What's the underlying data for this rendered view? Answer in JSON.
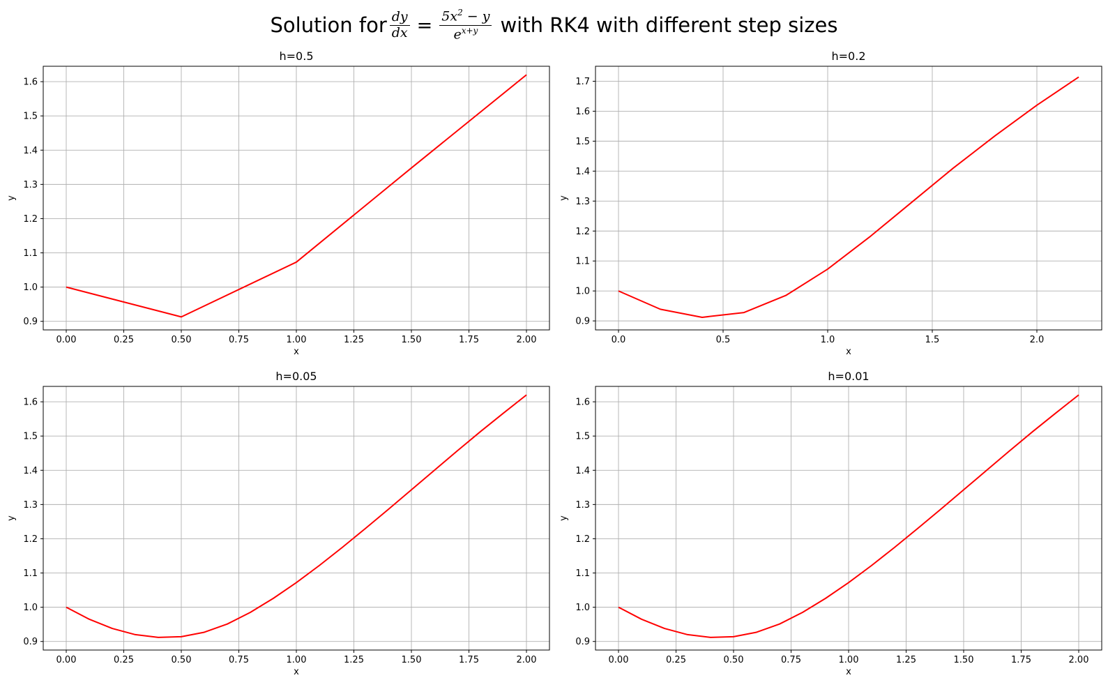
{
  "figure": {
    "title_prefix": "Solution for",
    "title_suffix": "with RK4 with different step sizes",
    "equation": {
      "lhs_num": "dy",
      "lhs_den": "dx",
      "eq": "=",
      "rhs_num_a": "5x",
      "rhs_num_exp": "2",
      "rhs_num_b": " − y",
      "rhs_den_base": "e",
      "rhs_den_exp": "x+y"
    }
  },
  "colors": {
    "line": "#ff0000",
    "grid": "#b0b0b0",
    "axis": "#000000",
    "background": "#ffffff"
  },
  "chart_data": [
    {
      "type": "line",
      "title": "h=0.5",
      "xlabel": "x",
      "ylabel": "y",
      "xlim": [
        -0.1,
        2.1
      ],
      "ylim": [
        0.875,
        1.645
      ],
      "xticks": [
        0.0,
        0.25,
        0.5,
        0.75,
        1.0,
        1.25,
        1.5,
        1.75,
        2.0
      ],
      "xtick_labels": [
        "0.00",
        "0.25",
        "0.50",
        "0.75",
        "1.00",
        "1.25",
        "1.50",
        "1.75",
        "2.00"
      ],
      "yticks": [
        0.9,
        1.0,
        1.1,
        1.2,
        1.3,
        1.4,
        1.5,
        1.6
      ],
      "ytick_labels": [
        "0.9",
        "1.0",
        "1.1",
        "1.2",
        "1.3",
        "1.4",
        "1.5",
        "1.6"
      ],
      "grid": true,
      "series": [
        {
          "color": "#ff0000",
          "x": [
            0.0,
            0.5,
            1.0,
            1.5,
            2.0
          ],
          "y": [
            1.0,
            0.913,
            1.073,
            1.348,
            1.62
          ]
        }
      ]
    },
    {
      "type": "line",
      "title": "h=0.2",
      "xlabel": "x",
      "ylabel": "y",
      "xlim": [
        -0.11,
        2.31
      ],
      "ylim": [
        0.87,
        1.75
      ],
      "xticks": [
        0.0,
        0.5,
        1.0,
        1.5,
        2.0
      ],
      "xtick_labels": [
        "0.0",
        "0.5",
        "1.0",
        "1.5",
        "2.0"
      ],
      "yticks": [
        0.9,
        1.0,
        1.1,
        1.2,
        1.3,
        1.4,
        1.5,
        1.6,
        1.7
      ],
      "ytick_labels": [
        "0.9",
        "1.0",
        "1.1",
        "1.2",
        "1.3",
        "1.4",
        "1.5",
        "1.6",
        "1.7"
      ],
      "grid": true,
      "series": [
        {
          "color": "#ff0000",
          "x": [
            0.0,
            0.2,
            0.4,
            0.6,
            0.8,
            1.0,
            1.2,
            1.4,
            1.6,
            1.8,
            2.0,
            2.2
          ],
          "y": [
            1.0,
            0.939,
            0.912,
            0.928,
            0.985,
            1.073,
            1.18,
            1.295,
            1.41,
            1.518,
            1.62,
            1.714
          ]
        }
      ]
    },
    {
      "type": "line",
      "title": "h=0.05",
      "xlabel": "x",
      "ylabel": "y",
      "xlim": [
        -0.1,
        2.1
      ],
      "ylim": [
        0.875,
        1.645
      ],
      "xticks": [
        0.0,
        0.25,
        0.5,
        0.75,
        1.0,
        1.25,
        1.5,
        1.75,
        2.0
      ],
      "xtick_labels": [
        "0.00",
        "0.25",
        "0.50",
        "0.75",
        "1.00",
        "1.25",
        "1.50",
        "1.75",
        "2.00"
      ],
      "yticks": [
        0.9,
        1.0,
        1.1,
        1.2,
        1.3,
        1.4,
        1.5,
        1.6
      ],
      "ytick_labels": [
        "0.9",
        "1.0",
        "1.1",
        "1.2",
        "1.3",
        "1.4",
        "1.5",
        "1.6"
      ],
      "grid": true,
      "series": [
        {
          "color": "#ff0000",
          "x": [
            0.0,
            0.1,
            0.2,
            0.3,
            0.4,
            0.5,
            0.6,
            0.7,
            0.8,
            0.9,
            1.0,
            1.1,
            1.2,
            1.3,
            1.4,
            1.5,
            1.6,
            1.7,
            1.8,
            1.9,
            2.0
          ],
          "y": [
            1.0,
            0.965,
            0.938,
            0.92,
            0.912,
            0.914,
            0.927,
            0.951,
            0.985,
            1.026,
            1.072,
            1.122,
            1.175,
            1.23,
            1.286,
            1.343,
            1.4,
            1.457,
            1.513,
            1.567,
            1.62
          ]
        }
      ]
    },
    {
      "type": "line",
      "title": "h=0.01",
      "xlabel": "x",
      "ylabel": "y",
      "xlim": [
        -0.1,
        2.1
      ],
      "ylim": [
        0.875,
        1.645
      ],
      "xticks": [
        0.0,
        0.25,
        0.5,
        0.75,
        1.0,
        1.25,
        1.5,
        1.75,
        2.0
      ],
      "xtick_labels": [
        "0.00",
        "0.25",
        "0.50",
        "0.75",
        "1.00",
        "1.25",
        "1.50",
        "1.75",
        "2.00"
      ],
      "yticks": [
        0.9,
        1.0,
        1.1,
        1.2,
        1.3,
        1.4,
        1.5,
        1.6
      ],
      "ytick_labels": [
        "0.9",
        "1.0",
        "1.1",
        "1.2",
        "1.3",
        "1.4",
        "1.5",
        "1.6"
      ],
      "grid": true,
      "series": [
        {
          "color": "#ff0000",
          "x": [
            0.0,
            0.1,
            0.2,
            0.3,
            0.4,
            0.5,
            0.6,
            0.7,
            0.8,
            0.9,
            1.0,
            1.1,
            1.2,
            1.3,
            1.4,
            1.5,
            1.6,
            1.7,
            1.8,
            1.9,
            2.0
          ],
          "y": [
            1.0,
            0.965,
            0.938,
            0.92,
            0.912,
            0.914,
            0.927,
            0.951,
            0.985,
            1.026,
            1.072,
            1.122,
            1.175,
            1.23,
            1.286,
            1.343,
            1.4,
            1.457,
            1.513,
            1.567,
            1.62
          ]
        }
      ]
    }
  ]
}
